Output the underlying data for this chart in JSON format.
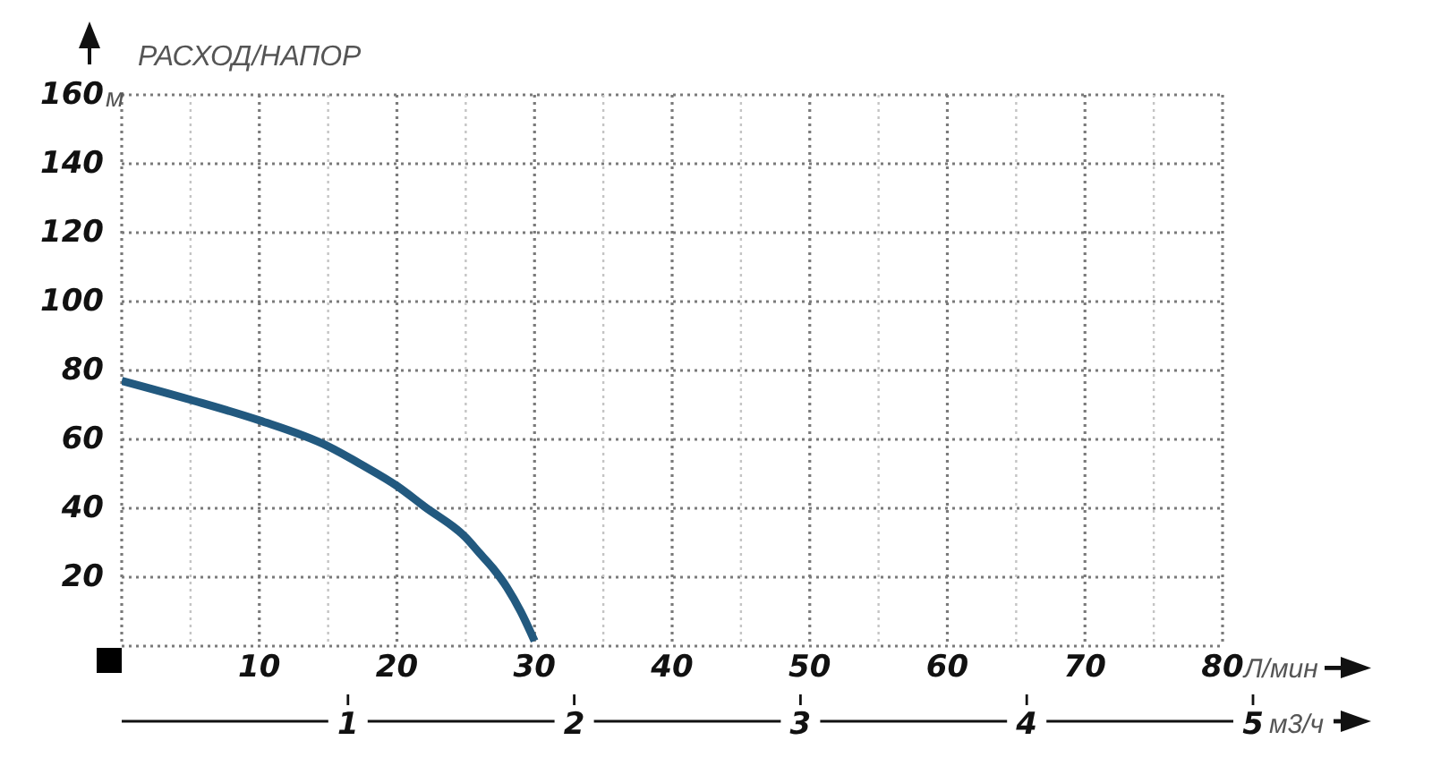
{
  "chart_data": {
    "type": "line",
    "title": "РАСХОД/НАПОР",
    "xlabel": "Л/мин",
    "ylabel": "м",
    "x2label": "м3/ч",
    "xlim": [
      0,
      80
    ],
    "xticks": [
      {
        "value": 0,
        "label": null
      },
      {
        "value": 5,
        "label": null
      },
      10,
      {
        "value": 15,
        "label": null
      },
      20,
      {
        "value": 25,
        "label": null
      },
      30,
      {
        "value": 35,
        "label": null
      },
      40,
      {
        "value": 45,
        "label": null
      },
      50,
      {
        "value": 55,
        "label": null
      },
      60,
      {
        "value": 65,
        "label": null
      },
      70,
      {
        "value": 75,
        "label": null
      },
      80
    ],
    "ylim": [
      0,
      160
    ],
    "yticks": [
      {
        "value": 0,
        "label": null
      },
      20,
      40,
      60,
      80,
      100,
      120,
      140,
      160
    ],
    "x2lim": [
      0,
      5
    ],
    "x2ticks": [
      1,
      2,
      3,
      4,
      5
    ],
    "grid": true,
    "marker": "none",
    "line_style": "solid",
    "series": [
      {
        "color": "#22597f",
        "x": [
          0,
          5,
          10,
          15,
          17.5,
          20,
          22,
          25,
          26,
          27,
          28,
          29,
          30
        ],
        "values": [
          77,
          71.5,
          65.5,
          58,
          52.5,
          46.5,
          40.5,
          31.5,
          27,
          22.5,
          17,
          10,
          1.5
        ]
      }
    ]
  }
}
